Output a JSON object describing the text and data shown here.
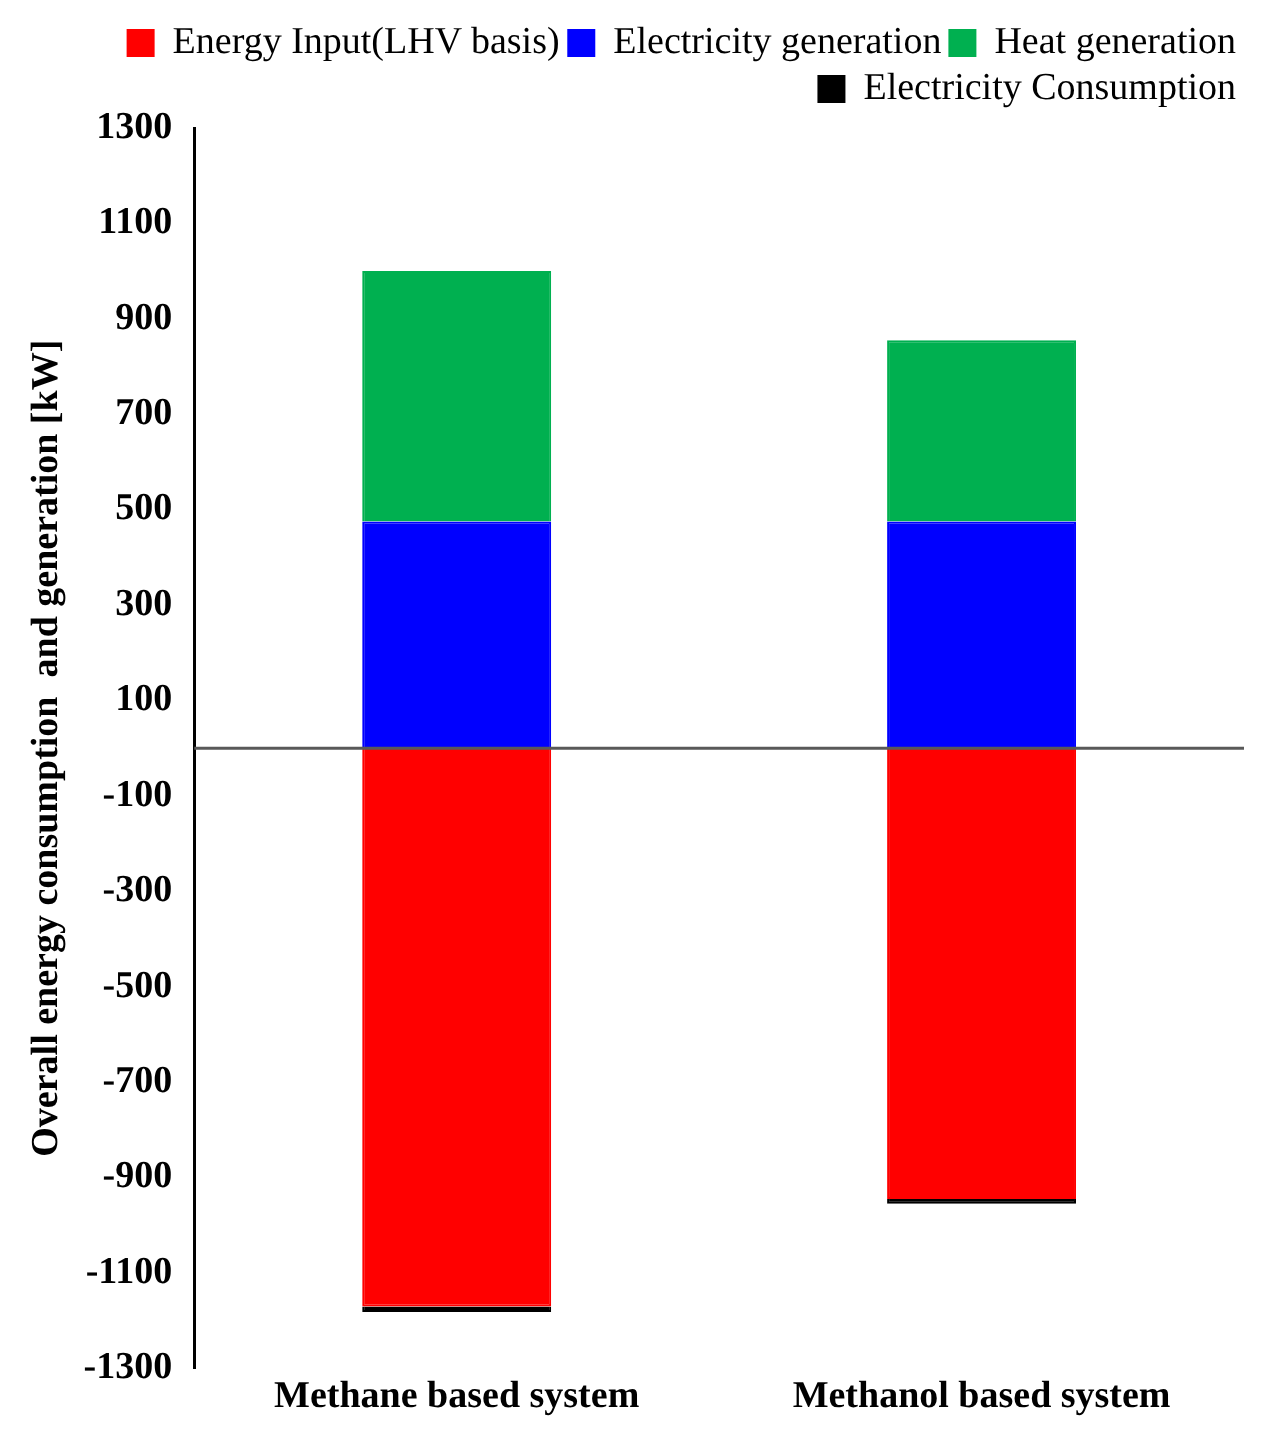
{
  "chart_data": {
    "type": "bar",
    "stacked": true,
    "ylabel": "Overall energy consumption  and generation [kW]",
    "categories": [
      "Methane based system",
      "Methanol based system"
    ],
    "series": [
      {
        "name": "Energy Input(LHV basis)",
        "color": "#ff0000",
        "values": [
          -1170,
          -945
        ]
      },
      {
        "name": "Electricity generation",
        "color": "#0000ff",
        "values": [
          475,
          475
        ]
      },
      {
        "name": "Heat generation",
        "color": "#00b050",
        "values": [
          525,
          380
        ]
      },
      {
        "name": "Electricity Consumption",
        "color": "#000000",
        "values": [
          -12,
          -10
        ]
      }
    ],
    "ylim": [
      -1300,
      1300
    ],
    "yticks": [
      -1300,
      -1100,
      -900,
      -700,
      -500,
      -300,
      -100,
      100,
      300,
      500,
      700,
      900,
      1100,
      1300
    ],
    "ref_lines": [
      {
        "axis": "y",
        "value": 0,
        "color": "#595959"
      }
    ],
    "grid": false,
    "legend": "top right"
  }
}
